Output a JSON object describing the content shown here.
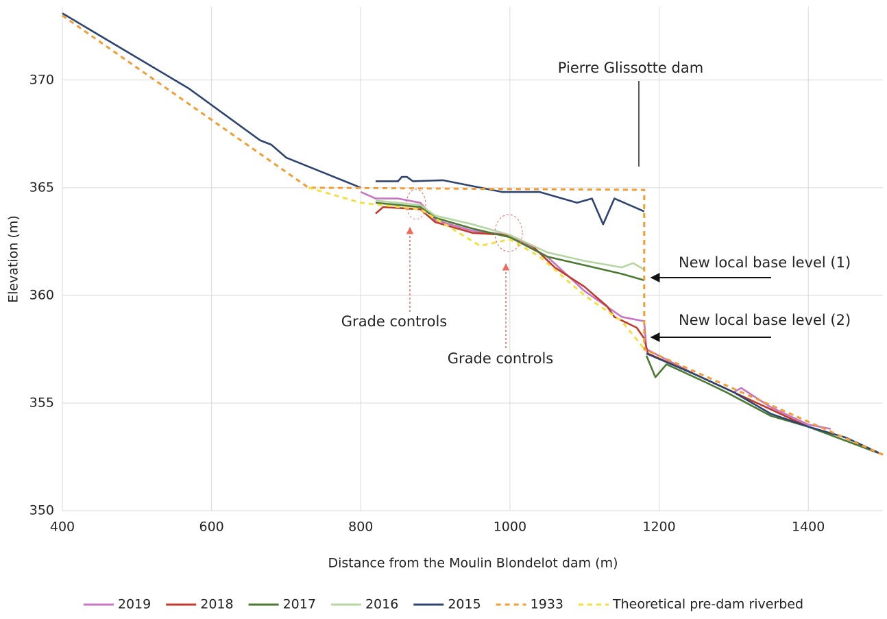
{
  "chart_data": {
    "type": "line",
    "xlabel": "Distance from the Moulin Blondelot dam (m)",
    "ylabel": "Elevation (m)",
    "xlim": [
      400,
      1500
    ],
    "ylim": [
      350,
      373.4
    ],
    "xticks": [
      400,
      600,
      800,
      1000,
      1200,
      1400
    ],
    "yticks": [
      350,
      355,
      360,
      365,
      370
    ],
    "grid": true,
    "legend": "bottom",
    "series": [
      {
        "name": "2019",
        "color": "#c774c2",
        "style": "solid",
        "x": [
          800,
          820,
          850,
          880,
          900,
          950,
          1000,
          1050,
          1100,
          1150,
          1180,
          1183,
          1250,
          1300,
          1310,
          1350,
          1400,
          1430
        ],
        "values": [
          364.8,
          364.5,
          364.5,
          364.3,
          363.5,
          363.0,
          362.8,
          361.8,
          360.2,
          359.0,
          358.8,
          357.5,
          356.3,
          355.5,
          355.7,
          354.8,
          354.0,
          353.8
        ]
      },
      {
        "name": "2018",
        "color": "#c0392b",
        "style": "solid",
        "x": [
          820,
          830,
          880,
          900,
          950,
          1000,
          1030,
          1060,
          1100,
          1120,
          1130,
          1140,
          1170,
          1180,
          1185,
          1250,
          1300,
          1400
        ],
        "values": [
          363.8,
          364.1,
          364.0,
          363.4,
          362.9,
          362.8,
          362.3,
          361.3,
          360.4,
          359.8,
          359.5,
          359.0,
          358.5,
          358.0,
          357.3,
          356.3,
          355.5,
          353.9
        ]
      },
      {
        "name": "2017",
        "color": "#4a7a32",
        "style": "solid",
        "x": [
          820,
          880,
          900,
          950,
          1000,
          1050,
          1100,
          1150,
          1180,
          null,
          1183,
          1195,
          1210,
          1260,
          1290,
          1350,
          1400,
          1500
        ],
        "values": [
          364.3,
          364.1,
          363.6,
          363.1,
          362.7,
          361.8,
          361.4,
          361.0,
          360.7,
          null,
          357.2,
          356.2,
          356.8,
          356.0,
          355.5,
          354.4,
          353.9,
          352.6
        ]
      },
      {
        "name": "2016",
        "color": "#b5d6a0",
        "style": "solid",
        "x": [
          820,
          880,
          900,
          950,
          1000,
          1050,
          1100,
          1150,
          1165,
          1180
        ],
        "values": [
          364.4,
          364.2,
          363.7,
          363.3,
          362.8,
          362.0,
          361.6,
          361.3,
          361.5,
          361.2
        ]
      },
      {
        "name": "2015",
        "color": "#2e4470",
        "style": "solid",
        "x": [
          400,
          570,
          665,
          680,
          700,
          800,
          null,
          820,
          850,
          855,
          862,
          870,
          910,
          990,
          1000,
          1040,
          1090,
          1110,
          1125,
          1140,
          1180,
          null,
          1183,
          1250,
          1300,
          1350,
          1400,
          1450,
          1500
        ],
        "values": [
          373.1,
          369.6,
          367.2,
          367.0,
          366.4,
          365.0,
          null,
          365.3,
          365.3,
          365.5,
          365.5,
          365.3,
          365.35,
          364.8,
          364.8,
          364.8,
          364.3,
          364.5,
          363.3,
          364.5,
          363.9,
          null,
          357.3,
          356.3,
          355.5,
          354.5,
          353.9,
          353.4,
          352.6
        ]
      },
      {
        "name": "1933",
        "color": "#f39c32",
        "style": "dashed",
        "x": [
          400,
          730,
          1180,
          1180,
          1500
        ],
        "values": [
          373.0,
          365.0,
          364.9,
          357.5,
          352.6
        ]
      },
      {
        "name": "Theoretical pre-dam riverbed",
        "color": "#f2e040",
        "style": "dashed",
        "x": [
          730,
          800,
          880,
          960,
          1000,
          1040,
          1100,
          1150,
          1183
        ],
        "values": [
          365.0,
          364.3,
          364.0,
          362.3,
          362.6,
          361.8,
          360.0,
          358.8,
          357.4
        ]
      }
    ],
    "annotations": [
      "Pierre Glissotte dam",
      "New local base level (1)",
      "New local base level (2)",
      "Grade controls",
      "Grade controls"
    ]
  }
}
